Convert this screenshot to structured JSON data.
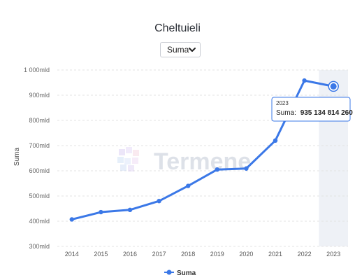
{
  "title": "Cheltuieli",
  "selector": {
    "value": "Suma"
  },
  "watermark": {
    "text": "Termene"
  },
  "colors": {
    "line": "#3b78e7",
    "highlight_band": "#eef1f6",
    "grid": "#e3e3e3"
  },
  "tooltip": {
    "year": "2023",
    "label": "Suma:",
    "value": "935 134 814 260"
  },
  "chart_data": {
    "type": "line",
    "title": "Cheltuieli",
    "ylabel": "Suma",
    "xlabel": "",
    "categories": [
      "2014",
      "2015",
      "2016",
      "2017",
      "2018",
      "2019",
      "2020",
      "2021",
      "2022",
      "2023"
    ],
    "series": [
      {
        "name": "Suma",
        "values": [
          407,
          436,
          445,
          480,
          540,
          605,
          609,
          720,
          958,
          935
        ]
      }
    ],
    "ylim": [
      300,
      1000
    ],
    "yticks": [
      300,
      400,
      500,
      600,
      700,
      800,
      900,
      1000
    ],
    "ytick_labels": [
      "300mld",
      "400mld",
      "500mld",
      "600mld",
      "700mld",
      "800mld",
      "900mld",
      "1 000mld"
    ],
    "highlight_index": 9,
    "grid": true,
    "legend": "bottom-center"
  }
}
